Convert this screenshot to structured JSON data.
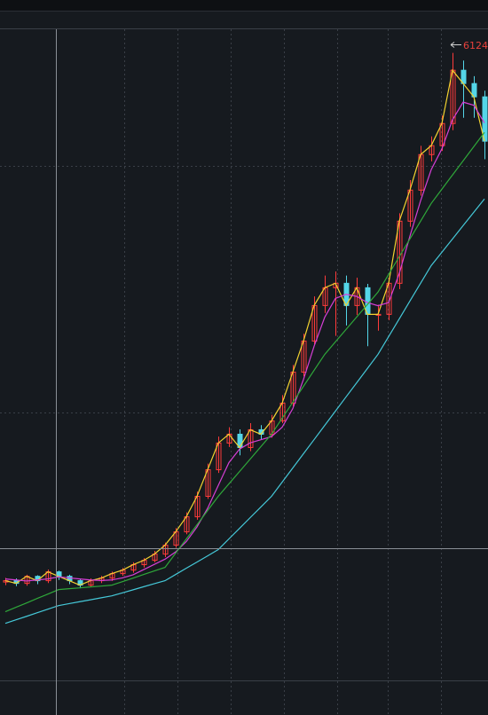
{
  "chart_data": {
    "type": "candlestick",
    "annotation": "6124.",
    "annotation_color": "#e8413c",
    "ylim": [
      100,
      6360
    ],
    "up_color": "#ff3b3b",
    "down_color": "#54d6e8",
    "open": [
      1030,
      1043,
      1017,
      1085,
      1043,
      1128,
      1085,
      1043,
      1000,
      1043,
      1068,
      1111,
      1145,
      1197,
      1239,
      1299,
      1385,
      1513,
      1658,
      1855,
      2111,
      2368,
      2453,
      2325,
      2496,
      2453,
      2581,
      2752,
      3051,
      3350,
      3692,
      3863,
      3906,
      3692,
      3863,
      3607,
      3607,
      3906,
      4504,
      4803,
      5145,
      5231,
      5444,
      5957,
      5829,
      5701
    ],
    "high": [
      1070,
      1065,
      1100,
      1095,
      1150,
      1140,
      1100,
      1060,
      1065,
      1090,
      1130,
      1165,
      1220,
      1260,
      1330,
      1410,
      1550,
      1700,
      1900,
      2170,
      2430,
      2520,
      2500,
      2560,
      2540,
      2640,
      2830,
      3120,
      3420,
      3780,
      3980,
      4020,
      3980,
      3960,
      3900,
      3700,
      3960,
      4580,
      4900,
      5230,
      5320,
      5520,
      6124,
      6050,
      5900,
      5760
    ],
    "low": [
      1000,
      990,
      995,
      1010,
      1020,
      1050,
      1010,
      970,
      980,
      1020,
      1040,
      1090,
      1120,
      1170,
      1220,
      1270,
      1360,
      1490,
      1630,
      1830,
      2080,
      2330,
      2250,
      2290,
      2400,
      2420,
      2560,
      2720,
      3010,
      3320,
      3620,
      3400,
      3500,
      3600,
      3300,
      3450,
      3550,
      3850,
      4450,
      4750,
      5080,
      5180,
      5380,
      5500,
      5500,
      5100
    ],
    "close": [
      1043,
      1017,
      1085,
      1043,
      1128,
      1085,
      1043,
      1000,
      1043,
      1068,
      1111,
      1145,
      1197,
      1239,
      1299,
      1385,
      1513,
      1658,
      1855,
      2111,
      2368,
      2453,
      2325,
      2496,
      2453,
      2581,
      2752,
      3051,
      3350,
      3692,
      3863,
      3906,
      3692,
      3863,
      3607,
      3607,
      3906,
      4504,
      4803,
      5145,
      5231,
      5444,
      5957,
      5829,
      5701,
      5274
    ],
    "series": [
      {
        "color": "#f2d230",
        "values": [
          1043,
          1017,
          1085,
          1043,
          1128,
          1085,
          1043,
          1000,
          1043,
          1068,
          1111,
          1145,
          1197,
          1239,
          1299,
          1385,
          1513,
          1658,
          1855,
          2111,
          2368,
          2453,
          2325,
          2496,
          2453,
          2581,
          2752,
          3051,
          3350,
          3692,
          3863,
          3906,
          3692,
          3863,
          3607,
          3607,
          3906,
          4504,
          4803,
          5145,
          5231,
          5444,
          5957,
          5829,
          5701,
          5274
        ]
      },
      {
        "color": "#d63fd6",
        "values": [
          1060,
          1050,
          1040,
          1050,
          1060,
          1080,
          1070,
          1060,
          1050,
          1045,
          1050,
          1070,
          1100,
          1150,
          1200,
          1250,
          1320,
          1420,
          1560,
          1740,
          1960,
          2180,
          2310,
          2370,
          2400,
          2430,
          2520,
          2700,
          2980,
          3300,
          3580,
          3760,
          3800,
          3780,
          3720,
          3690,
          3720,
          4000,
          4360,
          4700,
          5000,
          5200,
          5480,
          5650,
          5620,
          5450
        ]
      },
      {
        "color": "#2fa83a",
        "values": [
          744,
          787,
          829,
          872,
          914,
          957,
          966,
          974,
          983,
          991,
          1000,
          1034,
          1068,
          1103,
          1137,
          1171,
          1308,
          1445,
          1581,
          1718,
          1855,
          1975,
          2094,
          2214,
          2333,
          2453,
          2607,
          2761,
          2914,
          3068,
          3222,
          3342,
          3462,
          3581,
          3701,
          3821,
          3992,
          4163,
          4333,
          4504,
          4675,
          4812,
          4949,
          5085,
          5222,
          5359
        ]
      },
      {
        "color": "#45c8d8",
        "values": [
          632,
          666,
          700,
          735,
          769,
          803,
          822,
          841,
          859,
          878,
          897,
          926,
          955,
          985,
          1014,
          1043,
          1103,
          1163,
          1222,
          1282,
          1342,
          1445,
          1547,
          1650,
          1752,
          1855,
          1992,
          2128,
          2265,
          2401,
          2538,
          2675,
          2812,
          2948,
          3085,
          3222,
          3393,
          3564,
          3735,
          3906,
          4077,
          4205,
          4333,
          4462,
          4590,
          4718
        ]
      }
    ]
  }
}
